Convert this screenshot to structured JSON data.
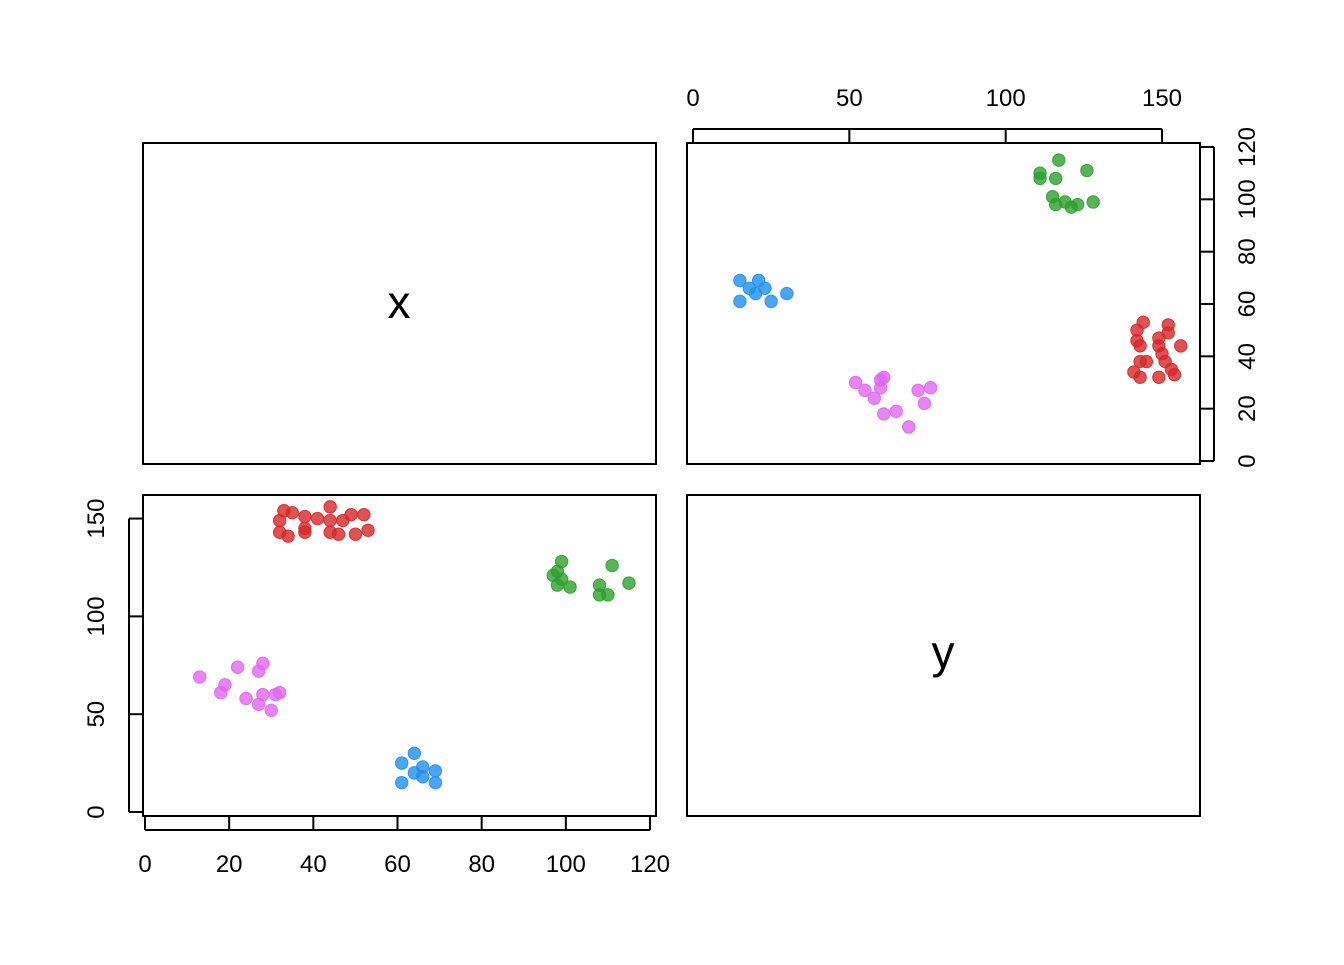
{
  "chart_data": {
    "type": "scatter",
    "layout": "pairs-matrix",
    "variables": [
      "x",
      "y"
    ],
    "xlim_x": [
      0,
      120
    ],
    "xlim_y": [
      0,
      160
    ],
    "x_ticks": [
      0,
      20,
      40,
      60,
      80,
      100,
      120
    ],
    "y_ticks": [
      0,
      50,
      100,
      150
    ],
    "x_ticks_top": [
      0,
      50,
      100,
      150
    ],
    "y_ticks_right": [
      0,
      20,
      40,
      60,
      80,
      100,
      120
    ],
    "grid": false,
    "legend": "none",
    "groups": [
      {
        "color": "#d62728",
        "x": [
          32,
          33,
          32,
          34,
          35,
          38,
          38,
          41,
          44,
          44,
          46,
          47,
          49,
          50,
          52,
          53,
          38,
          44
        ],
        "y": [
          143,
          154,
          149,
          141,
          153,
          145,
          151,
          150,
          143,
          156,
          142,
          149,
          152,
          142,
          152,
          144,
          143,
          149
        ]
      },
      {
        "color": "#2ca02c",
        "x": [
          97,
          98,
          98,
          99,
          99,
          101,
          108,
          108,
          110,
          111,
          115
        ],
        "y": [
          121,
          116,
          123,
          128,
          119,
          115,
          111,
          116,
          111,
          126,
          117
        ]
      },
      {
        "color": "#1f8ff0",
        "x": [
          61,
          61,
          64,
          64,
          66,
          66,
          69,
          69
        ],
        "y": [
          15,
          25,
          30,
          20,
          23,
          18,
          21,
          15
        ]
      },
      {
        "color": "#e066f0",
        "x": [
          13,
          18,
          19,
          22,
          24,
          27,
          27,
          28,
          28,
          30,
          31,
          32
        ],
        "y": [
          69,
          61,
          65,
          74,
          58,
          55,
          72,
          76,
          60,
          52,
          60,
          61
        ]
      }
    ]
  },
  "diagonal": {
    "top_left": "x",
    "bottom_right": "y"
  }
}
